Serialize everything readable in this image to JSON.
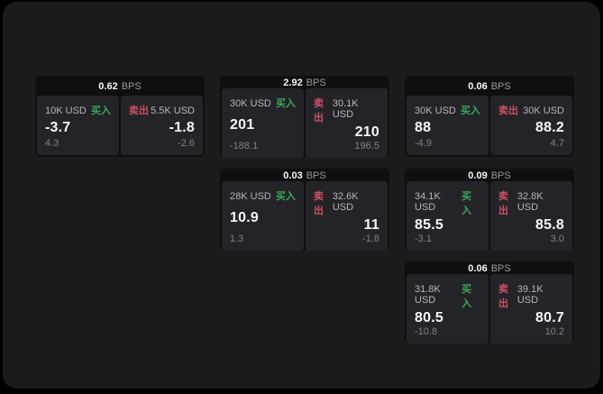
{
  "labels": {
    "bps_suffix": "BPS",
    "buy": "买入",
    "sell": "卖出"
  },
  "colors": {
    "buy_green": "#3fa45c",
    "sell_red": "#cc5066",
    "page_background": "#1b1b1d",
    "card_background": "#0f0f10",
    "panel_background": "#242428"
  },
  "cards": [
    {
      "bps": "0.62",
      "row": 1,
      "col": 1,
      "buy": {
        "size": "10K USD",
        "value": "-3.7",
        "sub": "4.3"
      },
      "sell": {
        "size": "5.5K USD",
        "value": "-1.8",
        "sub": "-2.6"
      }
    },
    {
      "bps": "2.92",
      "row": 1,
      "col": 2,
      "buy": {
        "size": "30K USD",
        "value": "201",
        "sub": "-188.1"
      },
      "sell": {
        "size": "30.1K USD",
        "value": "210",
        "sub": "196.5"
      }
    },
    {
      "bps": "0.06",
      "row": 1,
      "col": 3,
      "buy": {
        "size": "30K USD",
        "value": "88",
        "sub": "-4.9"
      },
      "sell": {
        "size": "30K USD",
        "value": "88.2",
        "sub": "4.7"
      }
    },
    {
      "bps": "0.03",
      "row": 2,
      "col": 2,
      "buy": {
        "size": "28K USD",
        "value": "10.9",
        "sub": "1.3"
      },
      "sell": {
        "size": "32.6K USD",
        "value": "11",
        "sub": "-1.8"
      }
    },
    {
      "bps": "0.09",
      "row": 2,
      "col": 3,
      "buy": {
        "size": "34.1K USD",
        "value": "85.5",
        "sub": "-3.1"
      },
      "sell": {
        "size": "32.8K USD",
        "value": "85.8",
        "sub": "3.0"
      }
    },
    {
      "bps": "0.06",
      "row": 3,
      "col": 3,
      "buy": {
        "size": "31.8K USD",
        "value": "80.5",
        "sub": "-10.8"
      },
      "sell": {
        "size": "39.1K USD",
        "value": "80.7",
        "sub": "10.2"
      }
    }
  ]
}
